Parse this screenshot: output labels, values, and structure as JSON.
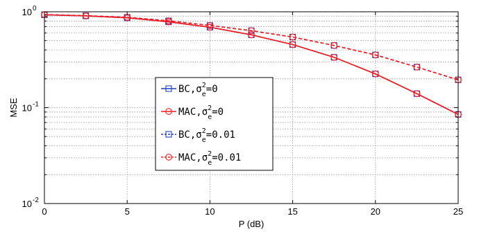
{
  "chart_data": {
    "type": "line",
    "xlabel": "P (dB)",
    "ylabel": "MSE",
    "xlim": [
      0,
      25
    ],
    "ylim": [
      0.01,
      1
    ],
    "yscale": "log",
    "grid": true,
    "legend_placement": "center-left",
    "x_ticks": [
      "0",
      "5",
      "10",
      "15",
      "20",
      "25"
    ],
    "x_tick_values": [
      0,
      5,
      10,
      15,
      20,
      25
    ],
    "y_ticks": [
      {
        "value": 1,
        "base": "10",
        "exp": "0"
      },
      {
        "value": 0.1,
        "base": "10",
        "exp": "-1"
      },
      {
        "value": 0.01,
        "base": "10",
        "exp": "-2"
      }
    ],
    "x": [
      0,
      2.5,
      5,
      7.5,
      10,
      12.5,
      15,
      17.5,
      20,
      22.5,
      25
    ],
    "series": [
      {
        "name_main": "BC,σ",
        "name_sup": "2",
        "name_sub": "e",
        "name_tail": "=0",
        "color": "#1f3fbf",
        "marker": "square",
        "dashed": false,
        "values": [
          0.93,
          0.905,
          0.865,
          0.785,
          0.69,
          0.575,
          0.455,
          0.335,
          0.225,
          0.14,
          0.085
        ]
      },
      {
        "name_main": "MAC,σ",
        "name_sup": "2",
        "name_sub": "e",
        "name_tail": "=0",
        "color": "#ff1a1a",
        "marker": "circle",
        "dashed": false,
        "values": [
          0.93,
          0.905,
          0.865,
          0.785,
          0.69,
          0.575,
          0.455,
          0.335,
          0.225,
          0.14,
          0.085
        ]
      },
      {
        "name_main": "BC,σ",
        "name_sup": "2",
        "name_sub": "e",
        "name_tail": "=0.01",
        "color": "#1f3fbf",
        "marker": "square",
        "dashed": true,
        "values": [
          0.935,
          0.91,
          0.875,
          0.805,
          0.72,
          0.635,
          0.545,
          0.445,
          0.355,
          0.265,
          0.195
        ]
      },
      {
        "name_main": "MAC,σ",
        "name_sup": "2",
        "name_sub": "e",
        "name_tail": "=0.01",
        "color": "#ff1a1a",
        "marker": "circle",
        "dashed": true,
        "values": [
          0.935,
          0.91,
          0.875,
          0.805,
          0.72,
          0.635,
          0.545,
          0.445,
          0.355,
          0.265,
          0.195
        ]
      }
    ]
  }
}
